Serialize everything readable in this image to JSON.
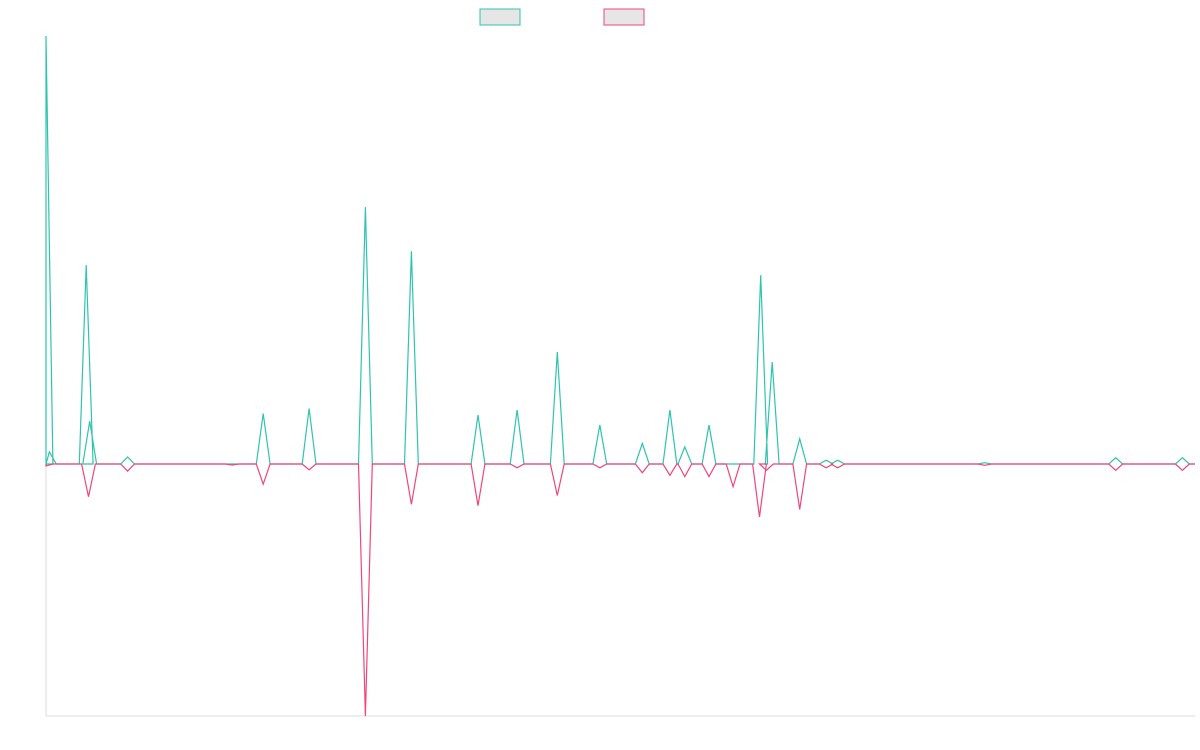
{
  "chart_data": {
    "type": "line",
    "title": "",
    "xlabel": "",
    "ylabel": "",
    "baseline": 0,
    "ylim": [
      -100,
      170
    ],
    "xlim": [
      0,
      100
    ],
    "grid": false,
    "legend_position": "top-center",
    "series": [
      {
        "color": "#2ec4ae",
        "legend_fill": "#e6e6e6",
        "direction": 1,
        "x": [
          0,
          0.3,
          3.5,
          3.8,
          7.1,
          18.9,
          22.9,
          27.8,
          31.8,
          37.6,
          41.0,
          44.5,
          48.2,
          51.9,
          54.3,
          55.6,
          57.7,
          62.2,
          63.2,
          65.6,
          67.9,
          68.9,
          81.7,
          93.1,
          98.9
        ],
        "values": [
          170,
          4.8,
          79,
          17,
          2.8,
          20,
          22,
          102,
          84.5,
          19.5,
          21.5,
          44.5,
          15.5,
          8.2,
          21.5,
          6.8,
          15.5,
          75,
          40.5,
          10,
          1.5,
          1.5,
          0.5,
          2.5,
          2.5
        ]
      },
      {
        "color": "#f0467a",
        "legend_fill": "#e6e6e6",
        "direction": -1,
        "x": [
          0,
          3.7,
          7.1,
          16.2,
          18.9,
          22.9,
          27.8,
          31.8,
          37.6,
          41.0,
          44.5,
          48.2,
          51.9,
          54.3,
          55.6,
          57.7,
          59.8,
          62.1,
          62.7,
          65.6,
          67.9,
          68.9,
          81.7,
          93.1,
          98.9
        ],
        "values": [
          0.8,
          13,
          2.8,
          0.4,
          8,
          2.3,
          100,
          16,
          16.5,
          1.5,
          12.5,
          1.5,
          3.5,
          4.5,
          5,
          5,
          9,
          21,
          2.5,
          18,
          1.5,
          1.5,
          0.5,
          2.5,
          2.5
        ]
      }
    ]
  }
}
